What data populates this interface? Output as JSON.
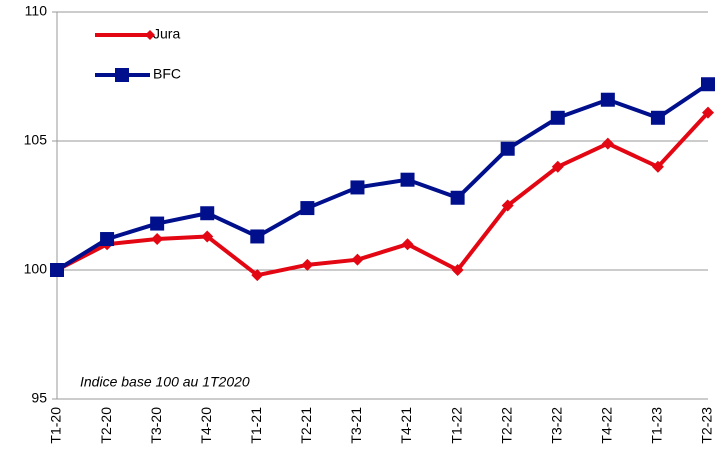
{
  "chart_data": {
    "type": "line",
    "annotation": "Indice base 100 au 1T2020",
    "categories": [
      "T1-20",
      "T2-20",
      "T3-20",
      "T4-20",
      "T1-21",
      "T2-21",
      "T3-21",
      "T4-21",
      "T1-22",
      "T2-22",
      "T3-22",
      "T4-22",
      "T1-23",
      "T2-23"
    ],
    "series": [
      {
        "name": "Jura",
        "color": "#e30613",
        "marker": "diamond",
        "values": [
          100,
          101.0,
          101.2,
          101.3,
          99.8,
          100.2,
          100.4,
          101.0,
          100.0,
          102.5,
          104.0,
          104.9,
          104.0,
          106.1
        ]
      },
      {
        "name": "BFC",
        "color": "#000f8c",
        "marker": "square",
        "values": [
          100,
          101.2,
          101.8,
          102.2,
          101.3,
          102.4,
          103.2,
          103.5,
          102.8,
          104.7,
          105.9,
          106.6,
          105.9,
          107.2
        ]
      }
    ],
    "ylim": [
      95,
      110
    ],
    "yticks": [
      95,
      100,
      105,
      110
    ],
    "grid": true,
    "legend": "top-left"
  }
}
